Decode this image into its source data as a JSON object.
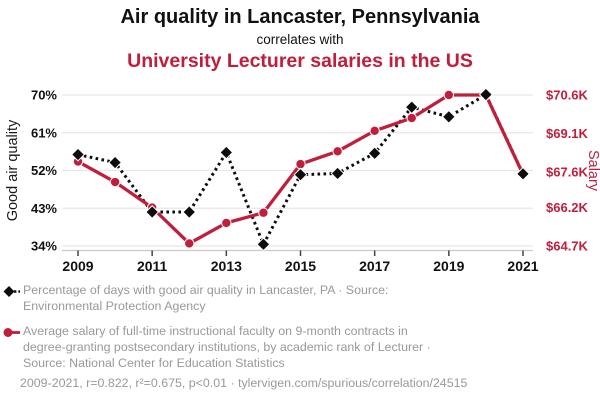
{
  "header": {
    "title_line1": "Air quality in Lancaster, Pennsylvania",
    "title_line2": "correlates with",
    "title_line3": "University Lecturer salaries in the US"
  },
  "colors": {
    "accent_red": "#c11e3c",
    "series_black": "#0d0d0d",
    "muted_text": "#999999",
    "grid_line": "#e7e7e7",
    "axis_line": "#c9c9c9",
    "tick_mark": "#444444",
    "tick_label": "#111111"
  },
  "chart_data": {
    "type": "line",
    "title": "Air quality in Lancaster, Pennsylvania correlates with University Lecturer salaries in the US",
    "x": [
      2009,
      2010,
      2011,
      2012,
      2013,
      2014,
      2015,
      2016,
      2017,
      2018,
      2019,
      2020,
      2021
    ],
    "x_tick_labels": [
      "2009",
      "2011",
      "2013",
      "2015",
      "2017",
      "2019",
      "2021"
    ],
    "x_ticks": [
      2009,
      2011,
      2013,
      2015,
      2017,
      2019,
      2021
    ],
    "grid": "horizontal",
    "legend_position": "below",
    "left_axis": {
      "label": "Good air quality",
      "tick_labels": [
        "70%",
        "61%",
        "52%",
        "43%",
        "34%"
      ],
      "tick_values": [
        70,
        61,
        52,
        43,
        34
      ],
      "range": [
        34,
        70
      ]
    },
    "right_axis": {
      "label": "Salary",
      "tick_labels": [
        "$70.6K",
        "$69.1K",
        "$67.6K",
        "$66.2K",
        "$64.7K"
      ],
      "tick_values": [
        70.6,
        69.1,
        67.6,
        66.2,
        64.7
      ],
      "range": [
        64.7,
        70.6
      ]
    },
    "series": [
      {
        "name": "Percentage of days with good air quality in Lancaster, PA (%)",
        "axis": "left",
        "marker": "diamond",
        "line_style": "dashed",
        "values": [
          55.8,
          53.9,
          42.1,
          42.1,
          56.3,
          34.4,
          51.0,
          51.3,
          56.1,
          67.1,
          64.8,
          70.1,
          51.2
        ]
      },
      {
        "name": "Average salary of full-time instructional faculty, academic rank of Lecturer ($K)",
        "axis": "right",
        "marker": "circle",
        "line_style": "solid",
        "values": [
          68.0,
          67.2,
          66.2,
          64.8,
          65.6,
          66.0,
          67.9,
          68.4,
          69.2,
          69.7,
          70.6,
          70.6,
          67.5
        ]
      }
    ]
  },
  "footer": {
    "legend": [
      {
        "lines": [
          "Percentage of days with good air quality in Lancaster, PA · Source:",
          "Environmental Protection Agency"
        ]
      },
      {
        "lines": [
          "Average salary of full-time instructional faculty on 9-month contracts in",
          "degree-granting postsecondary institutions, by academic rank of Lecturer ·",
          "Source: National Center for Education Statistics"
        ]
      }
    ],
    "stats_line": "2009-2021, r=0.822, r²=0.675, p<0.01 · tylervigen.com/spurious/correlation/24515"
  }
}
